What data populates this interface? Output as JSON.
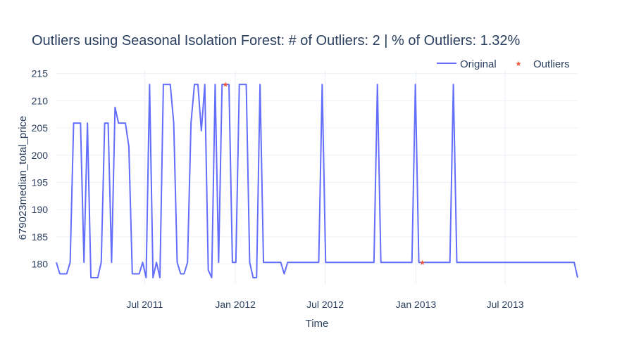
{
  "chart_data": {
    "type": "line",
    "title": "Outliers using Seasonal Isolation Forest: # of Outliers: 2 | % of Outliers: 1.32%",
    "xlabel": "Time",
    "ylabel": "679023median_total_price",
    "x_start": "2011-01-03",
    "x_end": "2013-11-25",
    "period_days": 7,
    "ylim": [
      176.2,
      215.6
    ],
    "yticks": [
      180,
      185,
      190,
      195,
      200,
      205,
      210,
      215
    ],
    "xticks": [
      {
        "label": "Jul 2011",
        "date": "2011-07-01"
      },
      {
        "label": "Jan 2012",
        "date": "2012-01-01"
      },
      {
        "label": "Jul 2012",
        "date": "2012-07-01"
      },
      {
        "label": "Jan 2013",
        "date": "2013-01-01"
      },
      {
        "label": "Jul 2013",
        "date": "2013-07-01"
      }
    ],
    "legend": [
      {
        "name": "Original",
        "symbol": "line",
        "color": "#636efa"
      },
      {
        "name": "Outliers",
        "symbol": "star",
        "color": "#ef553b"
      }
    ],
    "legend_position": "top-right",
    "series": [
      {
        "name": "Original",
        "color": "#636efa",
        "values": [
          180.3,
          178.2,
          178.2,
          178.2,
          180.3,
          205.9,
          205.9,
          205.9,
          180.3,
          205.9,
          177.5,
          177.5,
          177.5,
          180.3,
          205.9,
          205.9,
          180.3,
          208.8,
          205.9,
          205.9,
          205.9,
          201.6,
          178.2,
          178.2,
          178.2,
          180.3,
          177.5,
          213.0,
          177.5,
          180.3,
          177.5,
          213.0,
          213.0,
          213.0,
          205.9,
          180.3,
          178.2,
          178.2,
          180.3,
          205.9,
          213.0,
          213.0,
          204.5,
          213.0,
          178.9,
          177.5,
          213.0,
          180.3,
          213.0,
          213.0,
          213.0,
          180.3,
          180.3,
          213.0,
          213.0,
          213.0,
          180.3,
          177.5,
          177.5,
          213.0,
          180.3,
          180.3,
          180.3,
          180.3,
          180.3,
          180.3,
          178.2,
          180.3,
          180.3,
          180.3,
          180.3,
          180.3,
          180.3,
          180.3,
          180.3,
          180.3,
          180.3,
          213.0,
          180.3,
          180.3,
          180.3,
          180.3,
          180.3,
          180.3,
          180.3,
          180.3,
          180.3,
          180.3,
          180.3,
          180.3,
          180.3,
          180.3,
          180.3,
          213.0,
          180.3,
          180.3,
          180.3,
          180.3,
          180.3,
          180.3,
          180.3,
          180.3,
          180.3,
          180.3,
          213.0,
          180.3,
          180.3,
          180.3,
          180.3,
          180.3,
          180.3,
          180.3,
          180.3,
          180.3,
          180.3,
          213.0,
          180.3,
          180.3,
          180.3,
          180.3,
          180.3,
          180.3,
          180.3,
          180.3,
          180.3,
          180.3,
          180.3,
          180.3,
          180.3,
          180.3,
          180.3,
          180.3,
          180.3,
          180.3,
          180.3,
          180.3,
          180.3,
          180.3,
          180.3,
          180.3,
          180.3,
          180.3,
          180.3,
          180.3,
          180.3,
          180.3,
          180.3,
          180.3,
          180.3,
          180.3,
          180.3,
          177.5
        ]
      }
    ],
    "outliers": [
      {
        "index": 49,
        "value": 213.0
      },
      {
        "index": 106,
        "value": 180.3
      }
    ]
  }
}
